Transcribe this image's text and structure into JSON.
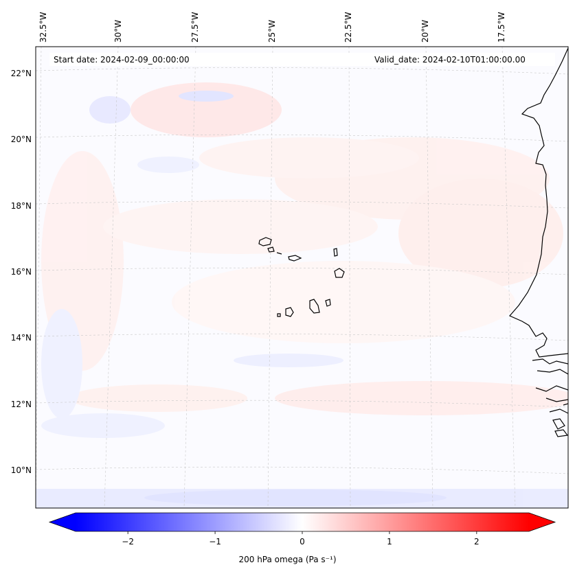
{
  "header": {
    "start_date": "Start date: 2024-02-09_00:00:00",
    "valid_date": "Valid_date: 2024-02-10T01:00:00.00"
  },
  "axes": {
    "lon_labels": [
      "32.5°W",
      "30°W",
      "27.5°W",
      "25°W",
      "22.5°W",
      "20°W",
      "17.5°W"
    ],
    "lat_labels": [
      "22°N",
      "20°N",
      "18°N",
      "16°N",
      "14°N",
      "12°N",
      "10°N"
    ]
  },
  "colorbar": {
    "title": "200 hPa omega (Pa s⁻¹)",
    "ticks": [
      "−2",
      "−1",
      "0",
      "1",
      "2"
    ],
    "tick_values": [
      -2,
      -1,
      0,
      1,
      2
    ],
    "range": [
      -2.6,
      2.6
    ],
    "negative_color": "#0000ff",
    "zero_color": "#ffffff",
    "positive_color": "#ff0000",
    "extend": "both"
  },
  "map": {
    "field": "200 hPa omega",
    "projection": "lambert-conformal",
    "gridlines": true,
    "coastline_color": "#000000"
  }
}
